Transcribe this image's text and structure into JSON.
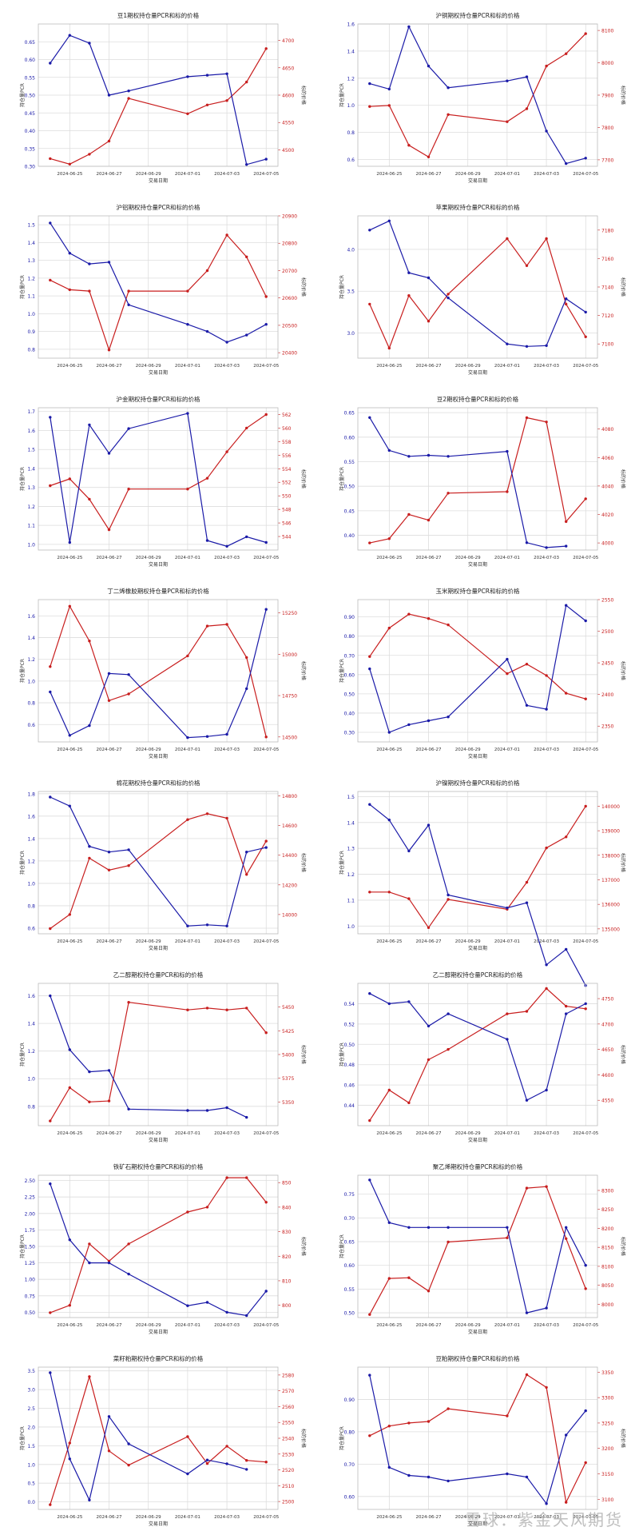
{
  "dates": [
    "2024-06-24",
    "2024-06-25",
    "2024-06-26",
    "2024-06-27",
    "2024-06-28",
    "2024-07-01",
    "2024-07-02",
    "2024-07-03",
    "2024-07-04",
    "2024-07-05"
  ],
  "common": {
    "xlabel": "交易日期",
    "ylabel_left": "持仓量PCR",
    "ylabel_right": "标的价格",
    "xticks": [
      "2024-06-25",
      "2024-06-27",
      "2024-06-29",
      "2024-07-01",
      "2024-07-03",
      "2024-07-05"
    ],
    "colors": {
      "pcr": "#1a1aa8",
      "price": "#c81e1e"
    }
  },
  "watermark": "雪球：紫金天风期货",
  "chart_data": [
    {
      "type": "line",
      "title": "豆1期权持仓量PCR和标的价格",
      "ylim": [
        0.3,
        0.7
      ],
      "yticks": [
        "0.30",
        "0.35",
        "0.40",
        "0.45",
        "0.50",
        "0.55",
        "0.60",
        "0.65"
      ],
      "y2lim": [
        4470,
        4730
      ],
      "y2ticks": [
        "4500",
        "4550",
        "4600",
        "4650",
        "4700"
      ],
      "pcr": [
        0.59,
        0.668,
        0.646,
        0.5,
        0.512,
        0.552,
        0.556,
        0.56,
        0.305,
        0.32
      ],
      "price": [
        4484,
        4474,
        4492,
        4516,
        4594,
        4566,
        4582,
        4590,
        4624,
        4685
      ]
    },
    {
      "type": "line",
      "title": "沪铜期权持仓量PCR和标的价格",
      "ylim": [
        0.55,
        1.6
      ],
      "yticks": [
        "0.6",
        "0.8",
        "1.0",
        "1.2",
        "1.4",
        "1.6"
      ],
      "y2lim": [
        7680,
        8120
      ],
      "y2ticks": [
        "7700",
        "7800",
        "7900",
        "8000",
        "8100"
      ],
      "pcr": [
        1.16,
        1.12,
        1.58,
        1.29,
        1.13,
        1.18,
        1.21,
        0.81,
        0.57,
        0.61
      ],
      "price": [
        7865,
        7868,
        7745,
        7709,
        7840,
        7818,
        7858,
        7990,
        8028,
        8090
      ]
    },
    {
      "type": "line",
      "title": "沪铝期权持仓量PCR和标的价格",
      "ylim": [
        0.75,
        1.55
      ],
      "yticks": [
        "0.8",
        "0.9",
        "1.0",
        "1.1",
        "1.2",
        "1.3",
        "1.4",
        "1.5"
      ],
      "y2lim": [
        20380,
        20900
      ],
      "y2ticks": [
        "20400",
        "20500",
        "20600",
        "20700",
        "20800",
        "20900"
      ],
      "pcr": [
        1.51,
        1.34,
        1.28,
        1.29,
        1.05,
        0.94,
        0.9,
        0.84,
        0.88,
        0.94
      ],
      "price": [
        20665,
        20630,
        20625,
        20410,
        20625,
        20625,
        20700,
        20830,
        20750,
        20605
      ]
    },
    {
      "type": "line",
      "title": "苹果期权持仓量PCR和标的价格",
      "ylim": [
        2.7,
        4.4
      ],
      "yticks": [
        "3.0",
        "3.5",
        "4.0"
      ],
      "y2lim": [
        7090,
        7190
      ],
      "y2ticks": [
        "7100",
        "7120",
        "7140",
        "7160",
        "7180"
      ],
      "pcr": [
        4.23,
        4.34,
        3.72,
        3.66,
        3.42,
        2.87,
        2.84,
        2.85,
        3.41,
        3.25
      ],
      "price": [
        7128,
        7097,
        7134,
        7116,
        7135,
        7174,
        7155,
        7174,
        7128,
        7105
      ]
    },
    {
      "type": "line",
      "title": "沪金期权持仓量PCR和标的价格",
      "ylim": [
        0.97,
        1.72
      ],
      "yticks": [
        "1.0",
        "1.1",
        "1.2",
        "1.3",
        "1.4",
        "1.5",
        "1.6",
        "1.7"
      ],
      "y2lim": [
        542,
        563
      ],
      "y2ticks": [
        "544",
        "546",
        "548",
        "550",
        "552",
        "554",
        "556",
        "558",
        "560",
        "562"
      ],
      "pcr": [
        1.67,
        1.01,
        1.63,
        1.48,
        1.61,
        1.69,
        1.02,
        0.99,
        1.04,
        1.01
      ],
      "price": [
        551.5,
        552.5,
        549.5,
        545,
        551,
        551,
        552.6,
        556.5,
        560,
        562
      ]
    },
    {
      "type": "line",
      "title": "豆2期权持仓量PCR和标的价格",
      "ylim": [
        0.37,
        0.66
      ],
      "yticks": [
        "0.40",
        "0.45",
        "0.50",
        "0.55",
        "0.60",
        "0.65"
      ],
      "y2lim": [
        3995,
        4095
      ],
      "y2ticks": [
        "4000",
        "4020",
        "4040",
        "4060",
        "4080"
      ],
      "pcr": [
        0.64,
        0.573,
        0.561,
        0.563,
        0.561,
        0.571,
        0.385,
        0.375,
        0.378,
        null
      ],
      "price": [
        4000,
        4003,
        4020,
        4016,
        4035,
        4036,
        4088,
        4085,
        4015,
        4031
      ]
    },
    {
      "type": "line",
      "title": "丁二烯橡胶期权持仓量PCR和标的价格",
      "ylim": [
        0.44,
        1.75
      ],
      "yticks": [
        "0.6",
        "0.8",
        "1.0",
        "1.2",
        "1.4",
        "1.6"
      ],
      "y2lim": [
        14470,
        15330
      ],
      "y2ticks": [
        "14500",
        "14750",
        "15000",
        "15250"
      ],
      "pcr": [
        0.9,
        0.5,
        0.59,
        1.07,
        1.06,
        0.48,
        0.49,
        0.51,
        0.93,
        1.66
      ],
      "price": [
        14925,
        15290,
        15080,
        14720,
        14760,
        14990,
        15170,
        15180,
        14980,
        14500
      ]
    },
    {
      "type": "line",
      "title": "玉米期权持仓量PCR和标的价格",
      "ylim": [
        0.25,
        0.99
      ],
      "yticks": [
        "0.30",
        "0.40",
        "0.50",
        "0.60",
        "0.70",
        "0.80",
        "0.90"
      ],
      "y2lim": [
        2325,
        2550
      ],
      "y2ticks": [
        "2350",
        "2400",
        "2450",
        "2500",
        "2550"
      ],
      "pcr": [
        0.63,
        0.3,
        0.34,
        0.36,
        0.38,
        0.68,
        0.44,
        0.42,
        0.96,
        0.88
      ],
      "price": [
        2460,
        2505,
        2527,
        2520,
        2510,
        2433,
        2448,
        2430,
        2402,
        2393
      ]
    },
    {
      "type": "line",
      "title": "棉花期权持仓量PCR和标的价格",
      "ylim": [
        0.55,
        1.82
      ],
      "yticks": [
        "0.6",
        "0.8",
        "1.0",
        "1.2",
        "1.4",
        "1.6",
        "1.8"
      ],
      "y2lim": [
        13870,
        14830
      ],
      "y2ticks": [
        "14000",
        "14200",
        "14400",
        "14600",
        "14800"
      ],
      "pcr": [
        1.77,
        1.69,
        1.33,
        1.28,
        1.3,
        0.62,
        0.63,
        0.62,
        1.28,
        1.32
      ],
      "price": [
        13905,
        14000,
        14380,
        14300,
        14330,
        14640,
        14680,
        14650,
        14270,
        14495
      ]
    },
    {
      "type": "line",
      "title": "沪镍期权持仓量PCR和标的价格",
      "ylim": [
        0.97,
        1.52
      ],
      "yticks": [
        "1.0",
        "1.1",
        "1.2",
        "1.3",
        "1.4",
        "1.5"
      ],
      "y2lim": [
        134800,
        140600
      ],
      "y2ticks": [
        "135000",
        "136000",
        "137000",
        "138000",
        "139000",
        "140000"
      ],
      "pcr": [
        1.47,
        1.41,
        1.29,
        1.39,
        1.12,
        1.07,
        1.09,
        0.85,
        0.91,
        0.77
      ],
      "price": [
        136500,
        136500,
        136230,
        135050,
        136200,
        135800,
        136900,
        138300,
        138750,
        140000
      ]
    },
    {
      "type": "line",
      "title": "乙二醇期权持仓量PCR和标的价格",
      "ylim": [
        0.66,
        1.69
      ],
      "yticks": [
        "0.8",
        "1.0",
        "1.2",
        "1.4",
        "1.6"
      ],
      "y2lim": [
        5325,
        5475
      ],
      "y2ticks": [
        "5350",
        "5375",
        "5400",
        "5425",
        "5450"
      ],
      "pcr": [
        1.6,
        1.21,
        1.05,
        1.06,
        0.78,
        0.77,
        0.77,
        0.79,
        0.72,
        null
      ],
      "price": [
        5330,
        5365,
        5350,
        5351,
        5455,
        5447,
        5449,
        5447,
        5449,
        5423
      ]
    },
    {
      "type": "line",
      "title": "乙二醇期权持仓量PCR和标的价格",
      "ylim": [
        0.42,
        0.56
      ],
      "yticks": [
        "0.44",
        "0.46",
        "0.48",
        "0.50",
        "0.52",
        "0.54"
      ],
      "y2lim": [
        4500,
        4780
      ],
      "y2ticks": [
        "4550",
        "4600",
        "4650",
        "4700",
        "4750"
      ],
      "pcr": [
        0.55,
        0.54,
        0.542,
        0.518,
        0.53,
        0.505,
        0.445,
        0.455,
        0.53,
        0.54
      ],
      "price": [
        4510,
        4570,
        4545,
        4630,
        4650,
        4720,
        4725,
        4770,
        4735,
        4730
      ]
    },
    {
      "type": "line",
      "title": "铁矿石期权持仓量PCR和标的价格",
      "ylim": [
        0.42,
        2.58
      ],
      "yticks": [
        "0.50",
        "0.75",
        "1.00",
        "1.25",
        "1.50",
        "1.75",
        "2.00",
        "2.25",
        "2.50"
      ],
      "y2lim": [
        795,
        853
      ],
      "y2ticks": [
        "800",
        "810",
        "820",
        "830",
        "840",
        "850"
      ],
      "pcr": [
        2.45,
        1.6,
        1.25,
        1.25,
        1.08,
        0.6,
        0.65,
        0.5,
        0.45,
        0.82
      ],
      "price": [
        797,
        800,
        825,
        818,
        825,
        838,
        840,
        852,
        852,
        842
      ]
    },
    {
      "type": "line",
      "title": "聚乙烯期权持仓量PCR和标的价格",
      "ylim": [
        0.49,
        0.79
      ],
      "yticks": [
        "0.50",
        "0.55",
        "0.60",
        "0.65",
        "0.70",
        "0.75"
      ],
      "y2lim": [
        7965,
        8340
      ],
      "y2ticks": [
        "8000",
        "8050",
        "8100",
        "8150",
        "8200",
        "8250",
        "8300"
      ],
      "pcr": [
        0.78,
        0.69,
        0.68,
        0.68,
        0.68,
        0.68,
        0.5,
        0.51,
        0.68,
        0.6
      ],
      "price": [
        7973,
        8068,
        8070,
        8035,
        8164,
        8175,
        8306,
        8310,
        8173,
        8041
      ]
    },
    {
      "type": "line",
      "title": "菜籽粕期权持仓量PCR和标的价格",
      "ylim": [
        -0.2,
        3.6
      ],
      "yticks": [
        "0.0",
        "0.5",
        "1.0",
        "1.5",
        "2.0",
        "2.5",
        "3.0",
        "3.5"
      ],
      "y2lim": [
        2495,
        2585
      ],
      "y2ticks": [
        "2500",
        "2510",
        "2520",
        "2530",
        "2540",
        "2550",
        "2560",
        "2570",
        "2580"
      ],
      "pcr": [
        3.45,
        1.15,
        0.05,
        2.28,
        1.55,
        0.75,
        1.12,
        1.02,
        0.87,
        null
      ],
      "price": [
        2498,
        2537,
        2579,
        2532,
        2523,
        2541,
        2524,
        2535,
        2526,
        2525
      ]
    },
    {
      "type": "line",
      "title": "豆粕期权持仓量PCR和标的价格",
      "ylim": [
        0.56,
        1.0
      ],
      "yticks": [
        "0.60",
        "0.70",
        "0.80",
        "0.90"
      ],
      "y2lim": [
        3080,
        3360
      ],
      "y2ticks": [
        "3100",
        "3150",
        "3200",
        "3250",
        "3300",
        "3350"
      ],
      "pcr": [
        0.975,
        0.69,
        0.665,
        0.66,
        0.648,
        0.67,
        0.66,
        0.578,
        0.79,
        0.865
      ],
      "price": [
        3225,
        3244,
        3250,
        3253,
        3278,
        3264,
        3345,
        3320,
        3094,
        3172
      ]
    }
  ]
}
